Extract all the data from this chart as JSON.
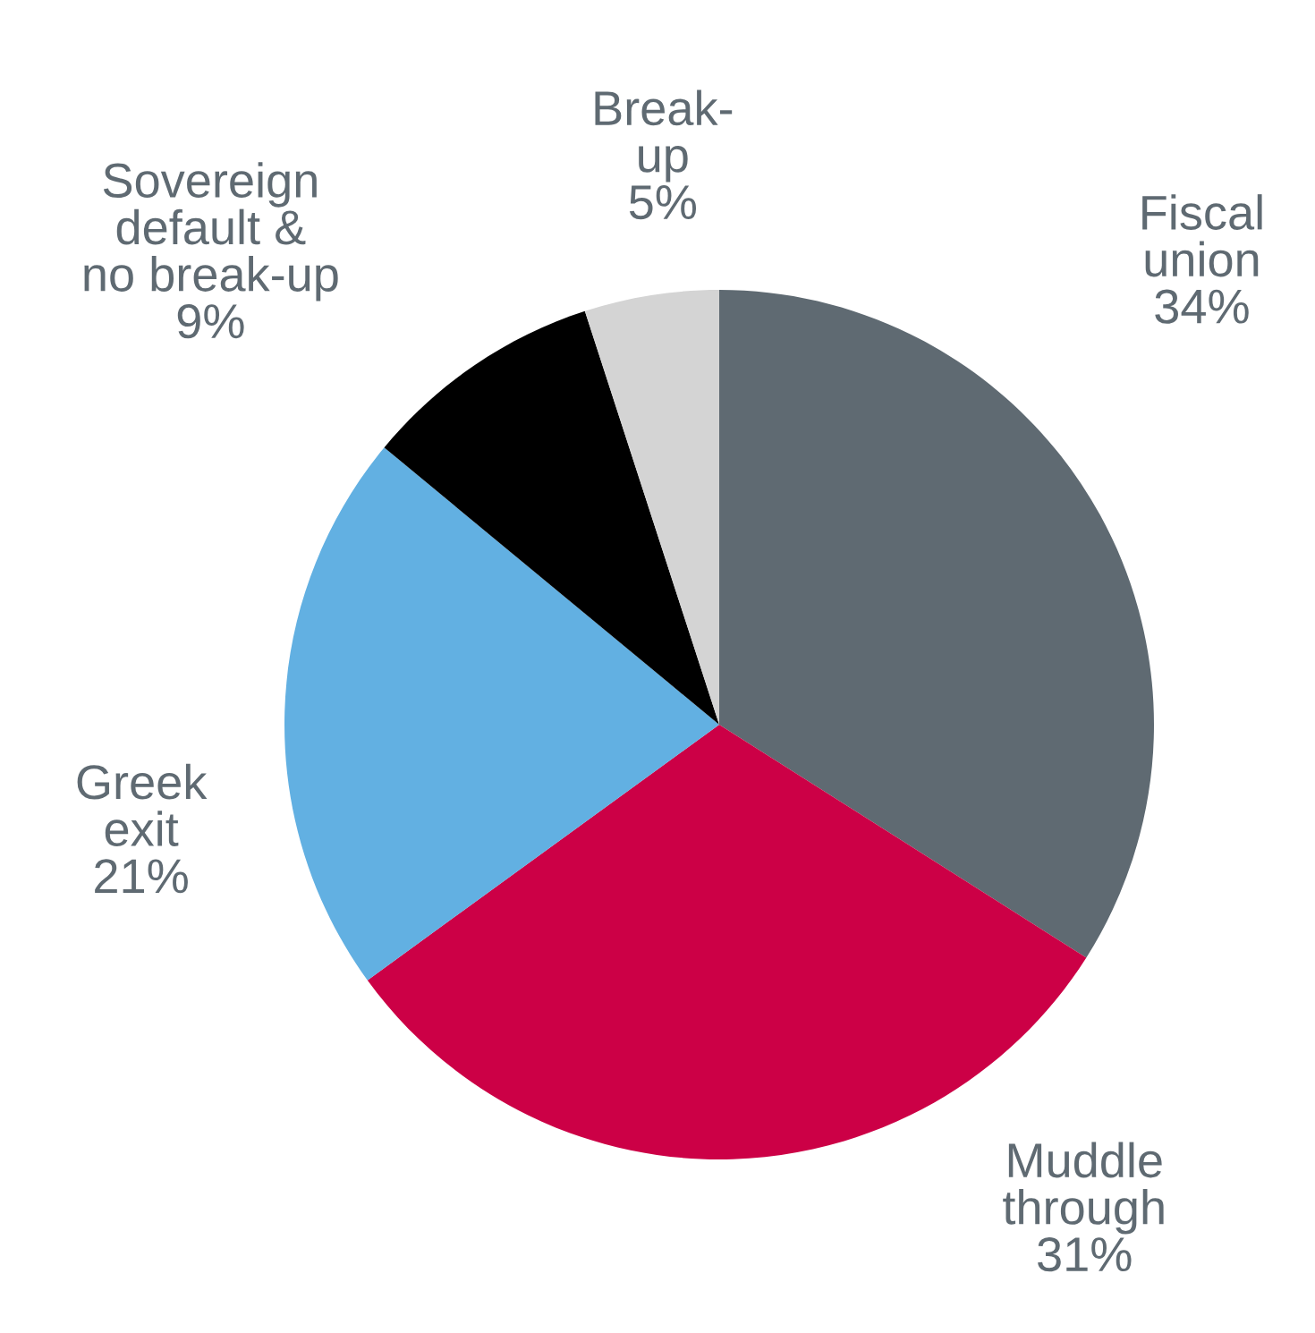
{
  "chart_data": {
    "type": "pie",
    "categories": [
      "Fiscal\nunion",
      "Muddle\nthrough",
      "Greek\nexit",
      "Sovereign\ndefault &\nno break-up",
      "Break-\nup"
    ],
    "values": [
      34,
      31,
      21,
      9,
      5
    ],
    "colors": [
      "#5f6a72",
      "#cc0046",
      "#62b0e2",
      "#000000",
      "#d4d4d4"
    ],
    "value_labels": [
      "34%",
      "31%",
      "21%",
      "9%",
      "5%"
    ]
  }
}
